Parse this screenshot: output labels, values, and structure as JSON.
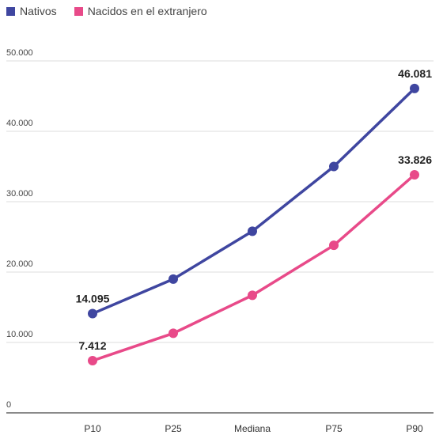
{
  "chart_data": {
    "type": "line",
    "categories": [
      "P10",
      "P25",
      "Mediana",
      "P75",
      "P90"
    ],
    "series": [
      {
        "name": "Nativos",
        "color": "#3f46a0",
        "values": [
          14095,
          19000,
          25800,
          35000,
          46081
        ]
      },
      {
        "name": "Nacidos en el extranjero",
        "color": "#e84a89",
        "values": [
          7412,
          11300,
          16700,
          23800,
          33826
        ]
      }
    ],
    "ylim": [
      0,
      50000
    ],
    "yticks": [
      "0",
      "10.000",
      "20.000",
      "30.000",
      "40.000",
      "50.000"
    ],
    "grid": true,
    "legend_position": "top-left",
    "data_labels": [
      {
        "series": 0,
        "index": 0,
        "text": "14.095"
      },
      {
        "series": 0,
        "index": 4,
        "text": "46.081"
      },
      {
        "series": 1,
        "index": 0,
        "text": "7.412"
      },
      {
        "series": 1,
        "index": 4,
        "text": "33.826"
      }
    ]
  }
}
